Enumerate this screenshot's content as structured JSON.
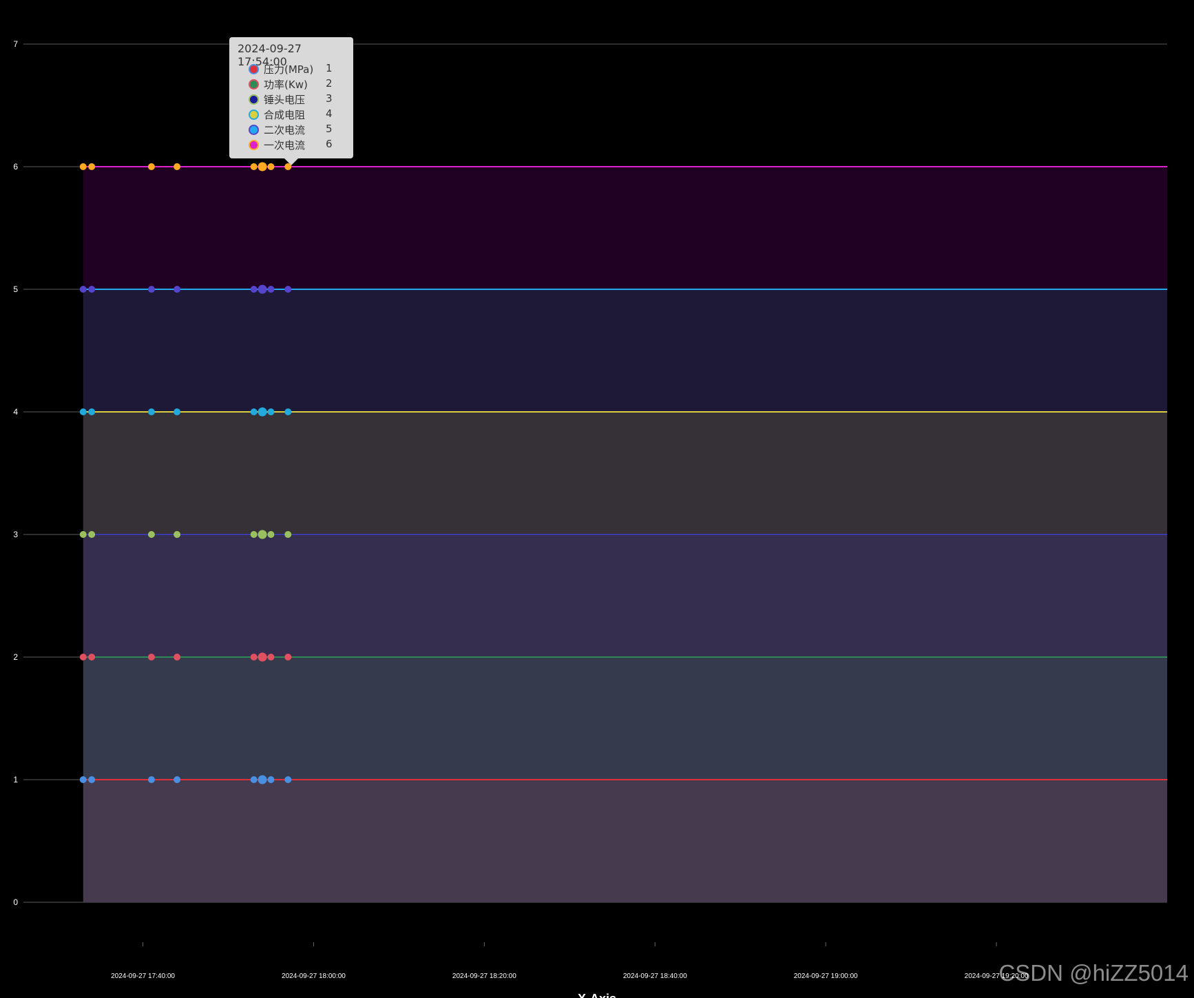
{
  "chart_data": {
    "type": "line",
    "xlabel": "X-Axis",
    "ylim": [
      0,
      7
    ],
    "yticks": [
      "0",
      "1",
      "2",
      "3",
      "4",
      "5",
      "6",
      "7"
    ],
    "xlim": [
      "2024-09-27 17:26:00",
      "2024-09-27 19:40:00"
    ],
    "xticks": [
      "2024-09-27 17:40:00",
      "2024-09-27 18:00:00",
      "2024-09-27 18:20:00",
      "2024-09-27 18:40:00",
      "2024-09-27 19:00:00",
      "2024-09-27 19:20:00"
    ],
    "stacked": true,
    "area_fill": true,
    "x": [
      "2024-09-27 17:33:00",
      "2024-09-27 17:34:00",
      "2024-09-27 17:41:00",
      "2024-09-27 17:44:00",
      "2024-09-27 17:53:00",
      "2024-09-27 17:54:00",
      "2024-09-27 17:55:00",
      "2024-09-27 17:57:00",
      "2024-09-27 19:40:00"
    ],
    "series": [
      {
        "name": "压力(MPa)",
        "values": [
          1,
          1,
          1,
          1,
          1,
          1,
          1,
          1,
          1
        ],
        "line_color": "#e0303a",
        "point_color": "#4a90e2",
        "area_color": "#463a4e"
      },
      {
        "name": "功率(Kw)",
        "values": [
          1,
          1,
          1,
          1,
          1,
          1,
          1,
          1,
          1
        ],
        "line_color": "#2e8b57",
        "point_color": "#e05060",
        "area_color": "#353a4d"
      },
      {
        "name": "锤头电压",
        "values": [
          1,
          1,
          1,
          1,
          1,
          1,
          1,
          1,
          1
        ],
        "line_color": "#3a3aaa",
        "point_color": "#9ac060",
        "area_color": "#352e4f"
      },
      {
        "name": "合成电阻",
        "values": [
          1,
          1,
          1,
          1,
          1,
          1,
          1,
          1,
          1
        ],
        "line_color": "#d8d040",
        "point_color": "#22aadd",
        "area_color": "#353137"
      },
      {
        "name": "二次电流",
        "values": [
          1,
          1,
          1,
          1,
          1,
          1,
          1,
          1,
          1
        ],
        "line_color": "#22aaee",
        "point_color": "#5545cc",
        "area_color": "#1d1936"
      },
      {
        "name": "一次电流",
        "values": [
          1,
          1,
          1,
          1,
          1,
          1,
          1,
          1,
          1
        ],
        "line_color": "#dd22cc",
        "point_color": "#ffaa22",
        "area_color": "#200023"
      }
    ],
    "tooltip": {
      "title": "2024-09-27 17:54:00",
      "items": [
        {
          "name": "压力(MPa)",
          "value": "1",
          "ring": "#4a90e2",
          "dot": "#e0303a"
        },
        {
          "name": "功率(Kw)",
          "value": "2",
          "ring": "#e05060",
          "dot": "#2e8b57"
        },
        {
          "name": "锤头电压",
          "value": "3",
          "ring": "#9ac060",
          "dot": "#1a1a9a"
        },
        {
          "name": "合成电阻",
          "value": "4",
          "ring": "#22aadd",
          "dot": "#d8d040"
        },
        {
          "name": "二次电流",
          "value": "5",
          "ring": "#5545cc",
          "dot": "#22aaee"
        },
        {
          "name": "一次电流",
          "value": "6",
          "ring": "#ffaa22",
          "dot": "#dd22cc"
        }
      ]
    }
  },
  "watermark": "CSDN @hiZZ5014"
}
